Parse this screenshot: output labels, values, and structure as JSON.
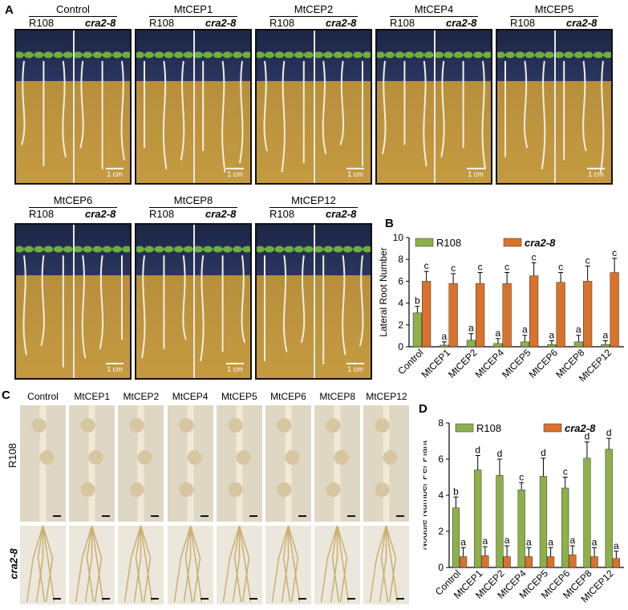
{
  "panels": {
    "a": "A",
    "b": "B",
    "c": "C",
    "d": "D"
  },
  "panelA": {
    "conditions_row1": [
      "Control",
      "MtCEP1",
      "MtCEP2",
      "MtCEP4",
      "MtCEP5"
    ],
    "conditions_row2": [
      "MtCEP6",
      "MtCEP8",
      "MtCEP12"
    ],
    "genotype_wt": "R108",
    "genotype_mut": "cra2-8",
    "scale_label": "1 cm"
  },
  "panelC": {
    "conditions": [
      "Control",
      "MtCEP1",
      "MtCEP2",
      "MtCEP4",
      "MtCEP5",
      "MtCEP6",
      "MtCEP8",
      "MtCEP12"
    ],
    "row_wt": "R108",
    "row_mut": "cra2-8"
  },
  "colors": {
    "r108": "#8db04a",
    "cra28": "#d9722b"
  },
  "chart_data": [
    {
      "id": "B",
      "type": "bar",
      "categories": [
        "Control",
        "MtCEP1",
        "MtCEP2",
        "MtCEP4",
        "MtCEP5",
        "MtCEP6",
        "MtCEP8",
        "MtCEP12"
      ],
      "series": [
        {
          "name": "R108",
          "values": [
            3.1,
            0.15,
            0.6,
            0.3,
            0.45,
            0.2,
            0.45,
            0.2
          ],
          "errors": [
            0.6,
            0.3,
            0.6,
            0.45,
            0.6,
            0.35,
            0.6,
            0.35
          ],
          "letters": [
            "b",
            "a",
            "a",
            "a",
            "a",
            "a",
            "a",
            "a"
          ]
        },
        {
          "name": "cra2-8",
          "values": [
            6.0,
            5.8,
            5.8,
            5.8,
            6.5,
            5.9,
            6.0,
            6.8
          ],
          "errors": [
            0.9,
            0.9,
            1.0,
            1.0,
            1.2,
            0.9,
            1.4,
            1.3
          ],
          "letters": [
            "c",
            "c",
            "c",
            "c",
            "c",
            "c",
            "c",
            "c"
          ]
        }
      ],
      "ylabel": "Lateral Root Number",
      "ylim": [
        0,
        10
      ],
      "yticks": [
        0,
        2,
        4,
        6,
        8,
        10
      ]
    },
    {
      "id": "D",
      "type": "bar",
      "categories": [
        "Control",
        "MtCEP1",
        "MtCEP2",
        "MtCEP4",
        "MtCEP5",
        "MtCEP6",
        "MtCEP8",
        "MtCEP12"
      ],
      "series": [
        {
          "name": "R108",
          "values": [
            3.3,
            5.4,
            5.1,
            4.3,
            5.05,
            4.4,
            6.05,
            6.55
          ],
          "errors": [
            0.6,
            0.8,
            0.9,
            0.4,
            1.0,
            0.6,
            0.9,
            0.6
          ],
          "letters": [
            "b",
            "d",
            "d",
            "c",
            "d",
            "c",
            "d",
            "d"
          ]
        },
        {
          "name": "cra2-8",
          "values": [
            0.6,
            0.65,
            0.6,
            0.6,
            0.6,
            0.7,
            0.6,
            0.5
          ],
          "errors": [
            0.5,
            0.5,
            0.6,
            0.5,
            0.5,
            0.5,
            0.5,
            0.4
          ],
          "letters": [
            "a",
            "a",
            "a",
            "a",
            "a",
            "a",
            "a",
            "a"
          ]
        }
      ],
      "ylabel": "Nodule Number Per Plant",
      "ylim": [
        0,
        8
      ],
      "yticks": [
        0,
        2,
        4,
        6,
        8
      ]
    }
  ]
}
